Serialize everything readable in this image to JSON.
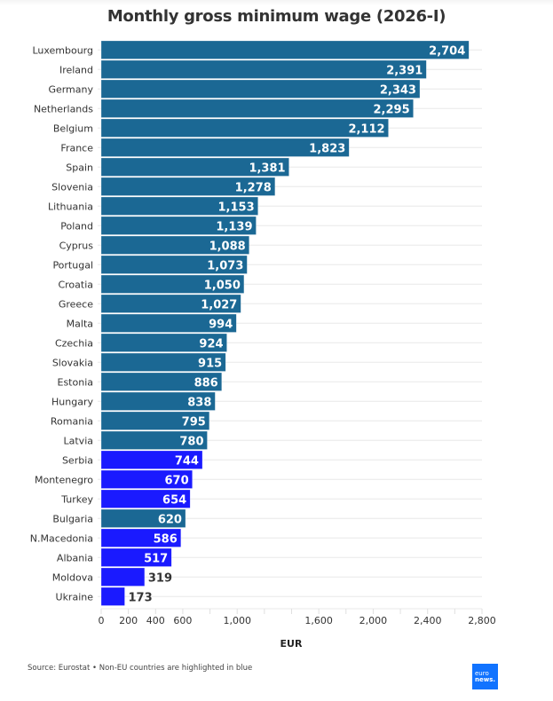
{
  "chart_data": {
    "type": "bar",
    "orientation": "horizontal",
    "title": "Monthly gross minimum wage (2026-I)",
    "xlabel": "EUR",
    "ylabel": "",
    "xlim": [
      0,
      2800
    ],
    "x_ticks": [
      0,
      200,
      400,
      600,
      800,
      1000,
      1200,
      1400,
      1600,
      1800,
      2000,
      2200,
      2400,
      2600,
      2800
    ],
    "x_tick_labels": [
      "0",
      "200",
      "400",
      "600",
      "",
      "1,000",
      "",
      "",
      "1,600",
      "",
      "2,000",
      "",
      "2,400",
      "",
      "2,800"
    ],
    "grid": true,
    "colors": {
      "eu": "#1b6894",
      "non_eu": "#1a1aff"
    },
    "categories": [
      "Luxembourg",
      "Ireland",
      "Germany",
      "Netherlands",
      "Belgium",
      "France",
      "Spain",
      "Slovenia",
      "Lithuania",
      "Poland",
      "Cyprus",
      "Portugal",
      "Croatia",
      "Greece",
      "Malta",
      "Czechia",
      "Slovakia",
      "Estonia",
      "Hungary",
      "Romania",
      "Latvia",
      "Serbia",
      "Montenegro",
      "Turkey",
      "Bulgaria",
      "N.Macedonia",
      "Albania",
      "Moldova",
      "Ukraine"
    ],
    "values": [
      2704,
      2391,
      2343,
      2295,
      2112,
      1823,
      1381,
      1278,
      1153,
      1139,
      1088,
      1073,
      1050,
      1027,
      994,
      924,
      915,
      886,
      838,
      795,
      780,
      744,
      670,
      654,
      620,
      586,
      517,
      319,
      173
    ],
    "value_labels": [
      "2,704",
      "2,391",
      "2,343",
      "2,295",
      "2,112",
      "1,823",
      "1,381",
      "1,278",
      "1,153",
      "1,139",
      "1,088",
      "1,073",
      "1,050",
      "1,027",
      "994",
      "924",
      "915",
      "886",
      "838",
      "795",
      "780",
      "744",
      "670",
      "654",
      "620",
      "586",
      "517",
      "319",
      "173"
    ],
    "non_eu": [
      false,
      false,
      false,
      false,
      false,
      false,
      false,
      false,
      false,
      false,
      false,
      false,
      false,
      false,
      false,
      false,
      false,
      false,
      false,
      false,
      false,
      true,
      true,
      true,
      false,
      true,
      true,
      true,
      true
    ]
  },
  "footer": {
    "source": "Source: Eurostat • Non-EU countries are highlighted in blue",
    "logo_line1": "euro",
    "logo_line2": "news."
  }
}
